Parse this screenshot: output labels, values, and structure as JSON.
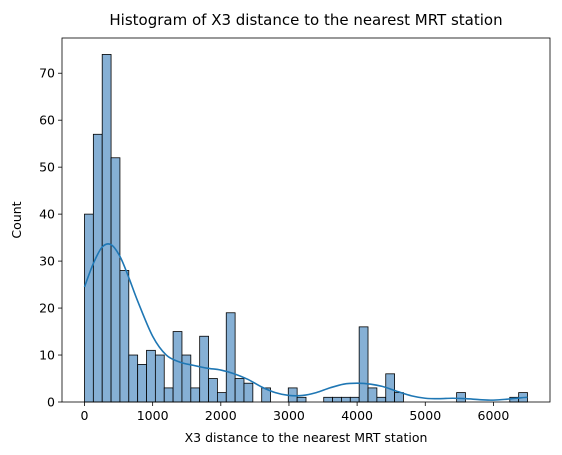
{
  "chart_data": {
    "type": "histogram",
    "title": "Histogram of X3 distance to the nearest MRT station",
    "xlabel": "X3 distance to the nearest MRT station",
    "ylabel": "Count",
    "xlim": [
      -330,
      6830
    ],
    "ylim": [
      0,
      77.5
    ],
    "xticks": [
      0,
      1000,
      2000,
      3000,
      4000,
      5000,
      6000
    ],
    "yticks": [
      0,
      10,
      20,
      30,
      40,
      50,
      60,
      70
    ],
    "bin_start": 0,
    "bin_width": 130,
    "counts": [
      40,
      57,
      74,
      52,
      28,
      10,
      8,
      11,
      10,
      3,
      15,
      10,
      3,
      14,
      5,
      2,
      19,
      5,
      4,
      0,
      3,
      0,
      0,
      3,
      1,
      0,
      0,
      1,
      1,
      1,
      1,
      16,
      3,
      1,
      6,
      2,
      0,
      0,
      0,
      0,
      0,
      0,
      2,
      0,
      0,
      0,
      0,
      0,
      1,
      2
    ],
    "kde": {
      "x": [
        0,
        130,
        260,
        390,
        520,
        650,
        780,
        1000,
        1200,
        1400,
        1600,
        1800,
        2000,
        2200,
        2400,
        2600,
        2800,
        3000,
        3200,
        3400,
        3600,
        3800,
        4000,
        4200,
        4400,
        4600,
        4800,
        5000,
        5200,
        5400,
        5600,
        5800,
        6000,
        6200,
        6400,
        6500
      ],
      "y": [
        24.5,
        29.5,
        33,
        33.5,
        31,
        26.5,
        21.5,
        14,
        10,
        8.5,
        7.8,
        7.2,
        6.8,
        6,
        4.8,
        3.2,
        2,
        1.4,
        1.4,
        2,
        3,
        3.8,
        4,
        3.8,
        3.2,
        2.2,
        1.3,
        0.8,
        0.7,
        0.8,
        0.7,
        0.5,
        0.4,
        0.6,
        0.9,
        1.0
      ]
    },
    "grid": false,
    "colors": {
      "bar_fill": "#86b0d5",
      "bar_edge": "#000000",
      "kde_line": "#1f77b4",
      "axis": "#000000"
    }
  }
}
